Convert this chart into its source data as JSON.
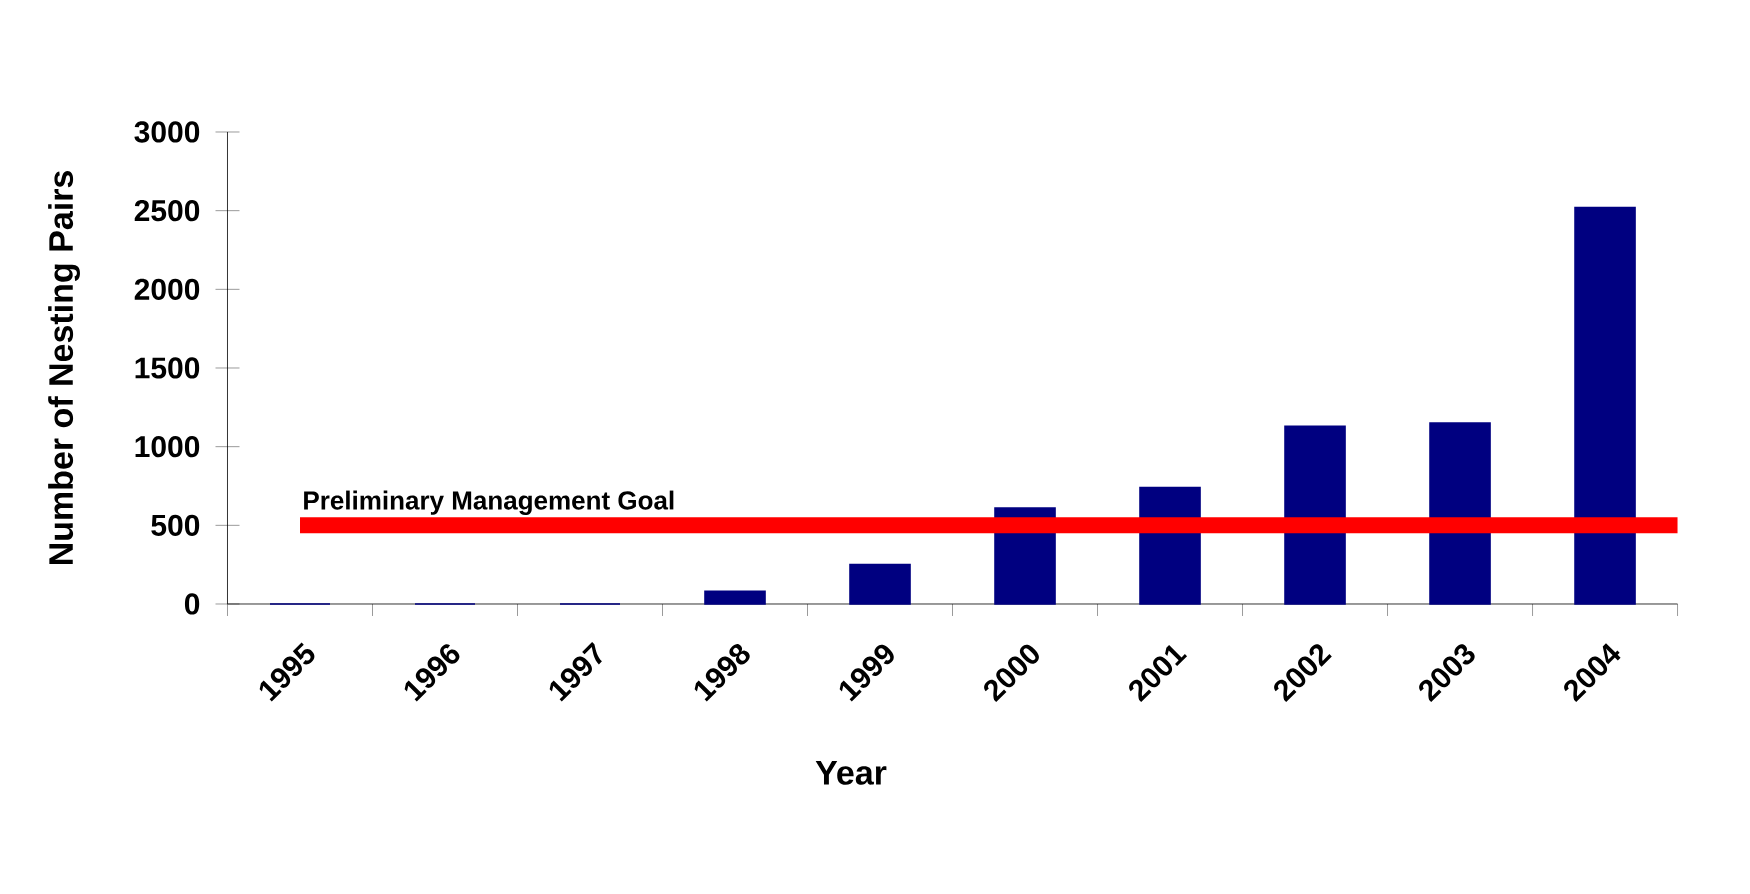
{
  "chart_data": {
    "type": "bar",
    "xlabel": "Year",
    "ylabel": "Number of Nesting Pairs",
    "categories": [
      "1995",
      "1996",
      "1997",
      "1998",
      "1999",
      "2000",
      "2001",
      "2002",
      "2003",
      "2004"
    ],
    "values": [
      0,
      0,
      0,
      80,
      250,
      610,
      740,
      1130,
      1150,
      2520
    ],
    "color": "#000080",
    "ylim": [
      0,
      3000
    ],
    "yticks": [
      0,
      500,
      1000,
      1500,
      2000,
      2500,
      3000
    ],
    "ref_lines": [
      {
        "axis": "y",
        "value": 500,
        "label": "Preliminary Management Goal",
        "color": "#ff0000"
      }
    ]
  }
}
